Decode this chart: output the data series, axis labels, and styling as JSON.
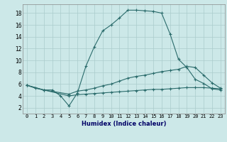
{
  "xlabel": "Humidex (Indice chaleur)",
  "bg_color": "#cce8e8",
  "grid_color": "#aacccc",
  "line_color": "#2a6b6b",
  "xlim": [
    -0.5,
    23.5
  ],
  "ylim": [
    1,
    19.5
  ],
  "xticks": [
    0,
    1,
    2,
    3,
    4,
    5,
    6,
    7,
    8,
    9,
    10,
    11,
    12,
    13,
    14,
    15,
    16,
    17,
    18,
    19,
    20,
    21,
    22,
    23
  ],
  "yticks": [
    2,
    4,
    6,
    8,
    10,
    12,
    14,
    16,
    18
  ],
  "line1_x": [
    0,
    1,
    2,
    3,
    4,
    5,
    6,
    7,
    8,
    9,
    10,
    11,
    12,
    13,
    14,
    15,
    16,
    17,
    18,
    19,
    20,
    21,
    22,
    23
  ],
  "line1_y": [
    5.8,
    5.3,
    5.0,
    5.0,
    4.0,
    2.3,
    4.5,
    9.0,
    12.3,
    15.0,
    16.0,
    17.2,
    18.5,
    18.5,
    18.4,
    18.3,
    18.0,
    14.5,
    10.2,
    8.8,
    6.8,
    6.1,
    5.2,
    5.0
  ],
  "line2_x": [
    0,
    2,
    5,
    6,
    7,
    8,
    9,
    10,
    11,
    12,
    13,
    14,
    15,
    16,
    17,
    18,
    19,
    20,
    21,
    22,
    23
  ],
  "line2_y": [
    5.8,
    5.0,
    4.3,
    4.8,
    5.0,
    5.3,
    5.7,
    6.0,
    6.5,
    7.0,
    7.3,
    7.5,
    7.8,
    8.1,
    8.3,
    8.5,
    9.0,
    8.8,
    7.5,
    6.2,
    5.3
  ],
  "line3_x": [
    0,
    2,
    5,
    6,
    7,
    8,
    9,
    10,
    11,
    12,
    13,
    14,
    15,
    16,
    17,
    18,
    19,
    20,
    21,
    22,
    23
  ],
  "line3_y": [
    5.8,
    5.0,
    4.0,
    4.2,
    4.3,
    4.4,
    4.5,
    4.6,
    4.7,
    4.8,
    4.9,
    5.0,
    5.1,
    5.1,
    5.2,
    5.3,
    5.4,
    5.4,
    5.4,
    5.3,
    5.2
  ]
}
